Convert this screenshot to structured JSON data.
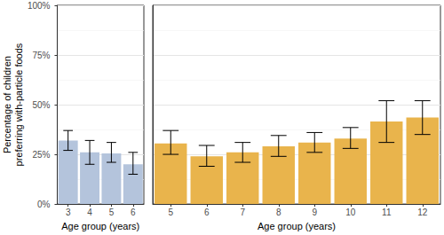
{
  "chart_data": [
    {
      "type": "bar",
      "x_label": "Age group (years)",
      "y_label": "Percentage of children\npreferring with-particle foods",
      "categories": [
        "3",
        "4",
        "5",
        "6"
      ],
      "values": [
        32,
        26,
        25.5,
        20
      ],
      "ci_low": [
        27,
        20,
        21,
        15
      ],
      "ci_high": [
        37,
        32,
        31,
        26
      ],
      "color": "#b4c4dc",
      "ylim": [
        0,
        100
      ],
      "yticks": [
        {
          "value": 0,
          "label": "0%"
        },
        {
          "value": 25,
          "label": "25%"
        },
        {
          "value": 50,
          "label": "50%"
        },
        {
          "value": 75,
          "label": "75%"
        },
        {
          "value": 100,
          "label": "100%"
        }
      ],
      "grid": true
    },
    {
      "type": "bar",
      "x_label": "Age group (years)",
      "categories": [
        "5",
        "6",
        "7",
        "8",
        "9",
        "10",
        "11",
        "12"
      ],
      "values": [
        30.5,
        24,
        26,
        29,
        31,
        33,
        41.5,
        43.5
      ],
      "ci_low": [
        25,
        19,
        21,
        24,
        26,
        28,
        31,
        35
      ],
      "ci_high": [
        37,
        29.5,
        31,
        34.5,
        36,
        38.5,
        52,
        52
      ],
      "color": "#e9b44c",
      "ylim": [
        0,
        100
      ],
      "yticks": [
        0,
        25,
        50,
        75,
        100
      ],
      "tick_labels": "x",
      "grid": true
    }
  ]
}
